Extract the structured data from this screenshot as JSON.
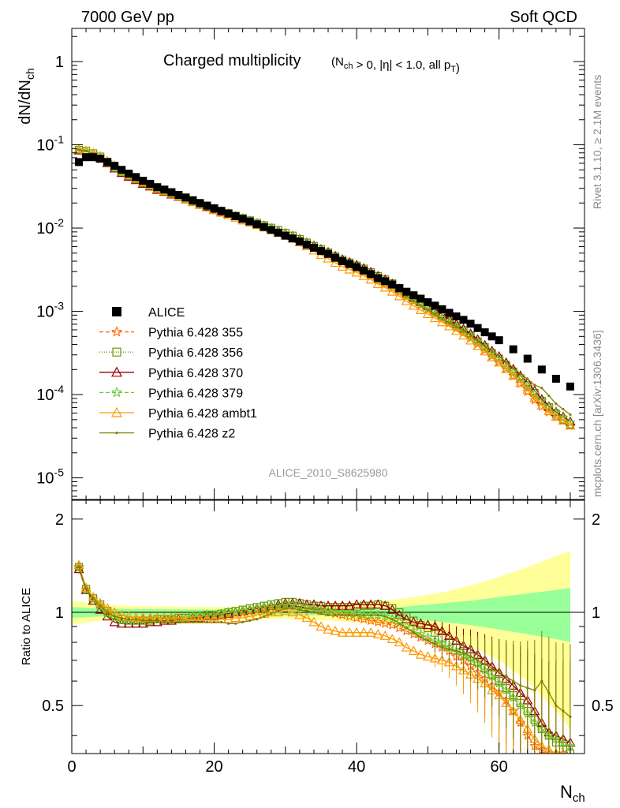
{
  "header": {
    "left": "7000 GeV pp",
    "right": "Soft QCD"
  },
  "side_text": {
    "top": "Rivet 3.1.10, ≥ 2.1M events",
    "bottom": "mcplots.cern.ch [arXiv:1306.3436]"
  },
  "chart_data": {
    "type": "line",
    "title_main": "Charged multiplicity",
    "title_cuts": "(N_ch > 0, |η| < 1.0, all p_T)",
    "ylabel": "dN/dN_ch",
    "xlabel": "N_ch",
    "ratio_ylabel": "Ratio to ALICE",
    "watermark": "ALICE_2010_S8625980",
    "xlim": [
      0,
      72
    ],
    "ylim": [
      5.5e-06,
      2.5
    ],
    "yscale": "log",
    "ratio_ylim": [
      0.35,
      2.3
    ],
    "x_ticks": [
      "0",
      "20",
      "40",
      "60"
    ],
    "y_ticks": [
      "10^-5",
      "10^-4",
      "10^-3",
      "10^-2",
      "10^-1",
      "1"
    ],
    "ratio_ticks": [
      "0.5",
      "1",
      "2"
    ],
    "legend": {
      "position": "center-left",
      "entries": [
        "ALICE",
        "Pythia 6.428 355",
        "Pythia 6.428 356",
        "Pythia 6.428 370",
        "Pythia 6.428 379",
        "Pythia 6.428 ambt1",
        "Pythia 6.428 z2"
      ]
    },
    "x": [
      1,
      2,
      3,
      4,
      5,
      6,
      7,
      8,
      9,
      10,
      11,
      12,
      13,
      14,
      15,
      16,
      17,
      18,
      19,
      20,
      21,
      22,
      23,
      24,
      25,
      26,
      27,
      28,
      29,
      30,
      31,
      32,
      33,
      34,
      35,
      36,
      37,
      38,
      39,
      40,
      41,
      42,
      43,
      44,
      45,
      46,
      47,
      48,
      49,
      50,
      51,
      52,
      53,
      54,
      55,
      56,
      57,
      58,
      59,
      60,
      61,
      62,
      63,
      64,
      65,
      66,
      67,
      68,
      69,
      70
    ],
    "alice": {
      "name": "ALICE",
      "color": "#000000",
      "x": [
        1,
        2,
        3,
        4,
        5,
        6,
        7,
        8,
        9,
        10,
        11,
        12,
        13,
        14,
        15,
        16,
        17,
        18,
        19,
        20,
        21,
        22,
        23,
        24,
        25,
        26,
        27,
        28,
        29,
        30,
        31,
        32,
        33,
        34,
        35,
        36,
        37,
        38,
        39,
        40,
        41,
        42,
        43,
        44,
        45,
        46,
        47,
        48,
        49,
        50,
        51,
        52,
        53,
        54,
        55,
        56,
        57,
        58,
        59,
        60,
        62,
        64,
        66,
        68,
        70
      ],
      "values": [
        0.062,
        0.071,
        0.071,
        0.068,
        0.062,
        0.056,
        0.05,
        0.045,
        0.041,
        0.037,
        0.034,
        0.031,
        0.029,
        0.027,
        0.025,
        0.0233,
        0.0216,
        0.02,
        0.0186,
        0.0173,
        0.0161,
        0.015,
        0.0139,
        0.0129,
        0.012,
        0.0111,
        0.0103,
        0.0095,
        0.0088,
        0.0081,
        0.0075,
        0.0069,
        0.0063,
        0.0058,
        0.0053,
        0.0049,
        0.0044,
        0.004,
        0.0037,
        0.0034,
        0.0031,
        0.0028,
        0.0025,
        0.0023,
        0.0021,
        0.0019,
        0.00172,
        0.00156,
        0.00142,
        0.00129,
        0.00117,
        0.00106,
        0.00096,
        0.00087,
        0.00079,
        0.00071,
        0.00063,
        0.00056,
        0.0005,
        0.00045,
        0.00035,
        0.00027,
        0.0002,
        0.000155,
        0.000125
      ],
      "band_x": [
        0,
        4,
        8,
        20,
        32,
        40,
        44,
        48,
        52,
        56,
        60,
        64,
        68,
        70
      ],
      "band_inner": [
        0.04,
        0.03,
        0.025,
        0.02,
        0.02,
        0.025,
        0.03,
        0.05,
        0.07,
        0.09,
        0.12,
        0.15,
        0.18,
        0.2
      ],
      "band_outer": [
        0.09,
        0.06,
        0.05,
        0.04,
        0.05,
        0.07,
        0.09,
        0.12,
        0.16,
        0.22,
        0.3,
        0.4,
        0.52,
        0.58
      ]
    },
    "series": [
      {
        "name": "Pythia 6.428 355",
        "color": "#ff6600",
        "marker": "star",
        "dash": "5,3",
        "ratio": [
          1.4,
          1.18,
          1.1,
          1.05,
          1.0,
          0.96,
          0.94,
          0.94,
          0.94,
          0.95,
          0.95,
          0.95,
          0.95,
          0.96,
          0.96,
          0.96,
          0.97,
          0.97,
          0.98,
          0.98,
          0.99,
          0.99,
          1.0,
          1.0,
          1.01,
          1.02,
          1.03,
          1.04,
          1.04,
          1.05,
          1.05,
          1.04,
          1.03,
          1.02,
          1.01,
          1.0,
          0.99,
          0.98,
          0.97,
          0.96,
          0.95,
          0.94,
          0.93,
          0.92,
          0.91,
          0.89,
          0.87,
          0.85,
          0.83,
          0.81,
          0.79,
          0.77,
          0.75,
          0.72,
          0.7,
          0.67,
          0.64,
          0.61,
          0.58,
          0.55,
          0.52,
          0.48,
          0.44,
          0.4,
          0.37,
          0.36,
          0.35,
          0.35,
          0.35,
          0.34
        ]
      },
      {
        "name": "Pythia 6.428 356",
        "color": "#669900",
        "marker": "square",
        "dash": "1,2",
        "ratio": [
          1.4,
          1.19,
          1.11,
          1.06,
          1.01,
          0.97,
          0.95,
          0.94,
          0.94,
          0.94,
          0.94,
          0.95,
          0.95,
          0.95,
          0.96,
          0.96,
          0.97,
          0.97,
          0.98,
          0.98,
          0.99,
          1.0,
          1.01,
          1.02,
          1.03,
          1.04,
          1.05,
          1.06,
          1.07,
          1.08,
          1.08,
          1.07,
          1.06,
          1.05,
          1.05,
          1.04,
          1.04,
          1.04,
          1.04,
          1.04,
          1.05,
          1.05,
          1.06,
          1.05,
          1.03,
          1.0,
          0.97,
          0.94,
          0.91,
          0.89,
          0.86,
          0.83,
          0.8,
          0.77,
          0.75,
          0.72,
          0.69,
          0.66,
          0.63,
          0.6,
          0.57,
          0.54,
          0.51,
          0.48,
          0.45,
          0.42,
          0.4,
          0.38,
          0.36,
          0.35
        ]
      },
      {
        "name": "Pythia 6.428 370",
        "color": "#990000",
        "marker": "triangle",
        "dash": "",
        "ratio": [
          1.38,
          1.18,
          1.09,
          1.02,
          0.97,
          0.93,
          0.92,
          0.92,
          0.92,
          0.92,
          0.93,
          0.93,
          0.94,
          0.94,
          0.95,
          0.95,
          0.96,
          0.96,
          0.97,
          0.97,
          0.98,
          0.99,
          1.0,
          1.01,
          1.02,
          1.03,
          1.04,
          1.05,
          1.06,
          1.07,
          1.07,
          1.07,
          1.06,
          1.06,
          1.05,
          1.05,
          1.05,
          1.05,
          1.05,
          1.06,
          1.06,
          1.06,
          1.06,
          1.05,
          1.02,
          0.98,
          0.95,
          0.93,
          0.92,
          0.91,
          0.9,
          0.87,
          0.84,
          0.81,
          0.78,
          0.76,
          0.73,
          0.7,
          0.67,
          0.64,
          0.61,
          0.58,
          0.55,
          0.52,
          0.48,
          0.44,
          0.41,
          0.4,
          0.39,
          0.38
        ]
      },
      {
        "name": "Pythia 6.428 379",
        "color": "#66cc33",
        "marker": "star",
        "dash": "5,3",
        "ratio": [
          1.39,
          1.18,
          1.1,
          1.04,
          0.99,
          0.96,
          0.94,
          0.94,
          0.94,
          0.94,
          0.94,
          0.95,
          0.95,
          0.95,
          0.96,
          0.96,
          0.97,
          0.97,
          0.98,
          0.98,
          0.99,
          1.0,
          1.0,
          1.01,
          1.02,
          1.03,
          1.04,
          1.05,
          1.05,
          1.06,
          1.06,
          1.05,
          1.04,
          1.03,
          1.02,
          1.01,
          1.0,
          1.0,
          0.99,
          0.99,
          0.98,
          0.98,
          0.98,
          0.97,
          0.95,
          0.93,
          0.9,
          0.87,
          0.85,
          0.83,
          0.81,
          0.79,
          0.77,
          0.75,
          0.73,
          0.71,
          0.68,
          0.65,
          0.62,
          0.59,
          0.56,
          0.53,
          0.5,
          0.47,
          0.44,
          0.42,
          0.4,
          0.39,
          0.38,
          0.37
        ]
      },
      {
        "name": "Pythia 6.428 ambt1",
        "color": "#ff9900",
        "marker": "triangle",
        "dash": "",
        "ratio": [
          1.42,
          1.2,
          1.12,
          1.07,
          1.03,
          1.0,
          0.98,
          0.97,
          0.96,
          0.96,
          0.96,
          0.96,
          0.96,
          0.96,
          0.96,
          0.95,
          0.95,
          0.95,
          0.95,
          0.95,
          0.95,
          0.95,
          0.96,
          0.96,
          0.97,
          0.98,
          0.99,
          1.0,
          1.0,
          1.01,
          1.0,
          0.98,
          0.96,
          0.93,
          0.9,
          0.88,
          0.87,
          0.86,
          0.86,
          0.86,
          0.86,
          0.86,
          0.85,
          0.84,
          0.82,
          0.8,
          0.77,
          0.75,
          0.73,
          0.72,
          0.71,
          0.7,
          0.69,
          0.67,
          0.65,
          0.63,
          0.61,
          0.59,
          0.56,
          0.54,
          0.51,
          0.48,
          0.45,
          0.42,
          0.39,
          0.37,
          0.36,
          0.35,
          0.35,
          0.34
        ]
      },
      {
        "name": "Pythia 6.428 z2",
        "color": "#808000",
        "marker": "dot",
        "dash": "",
        "ratio": [
          1.4,
          1.19,
          1.11,
          1.05,
          1.0,
          0.97,
          0.96,
          0.95,
          0.95,
          0.94,
          0.94,
          0.94,
          0.93,
          0.93,
          0.93,
          0.93,
          0.93,
          0.93,
          0.93,
          0.93,
          0.93,
          0.92,
          0.92,
          0.93,
          0.94,
          0.95,
          0.97,
          0.99,
          1.01,
          1.03,
          1.03,
          1.02,
          1.01,
          1.0,
          0.99,
          0.98,
          0.98,
          0.98,
          0.98,
          0.98,
          0.98,
          0.98,
          0.98,
          0.97,
          0.95,
          0.92,
          0.89,
          0.86,
          0.83,
          0.81,
          0.79,
          0.77,
          0.76,
          0.75,
          0.74,
          0.72,
          0.7,
          0.68,
          0.66,
          0.64,
          0.62,
          0.6,
          0.58,
          0.57,
          0.56,
          0.6,
          0.55,
          0.5,
          0.48,
          0.46
        ]
      }
    ]
  }
}
